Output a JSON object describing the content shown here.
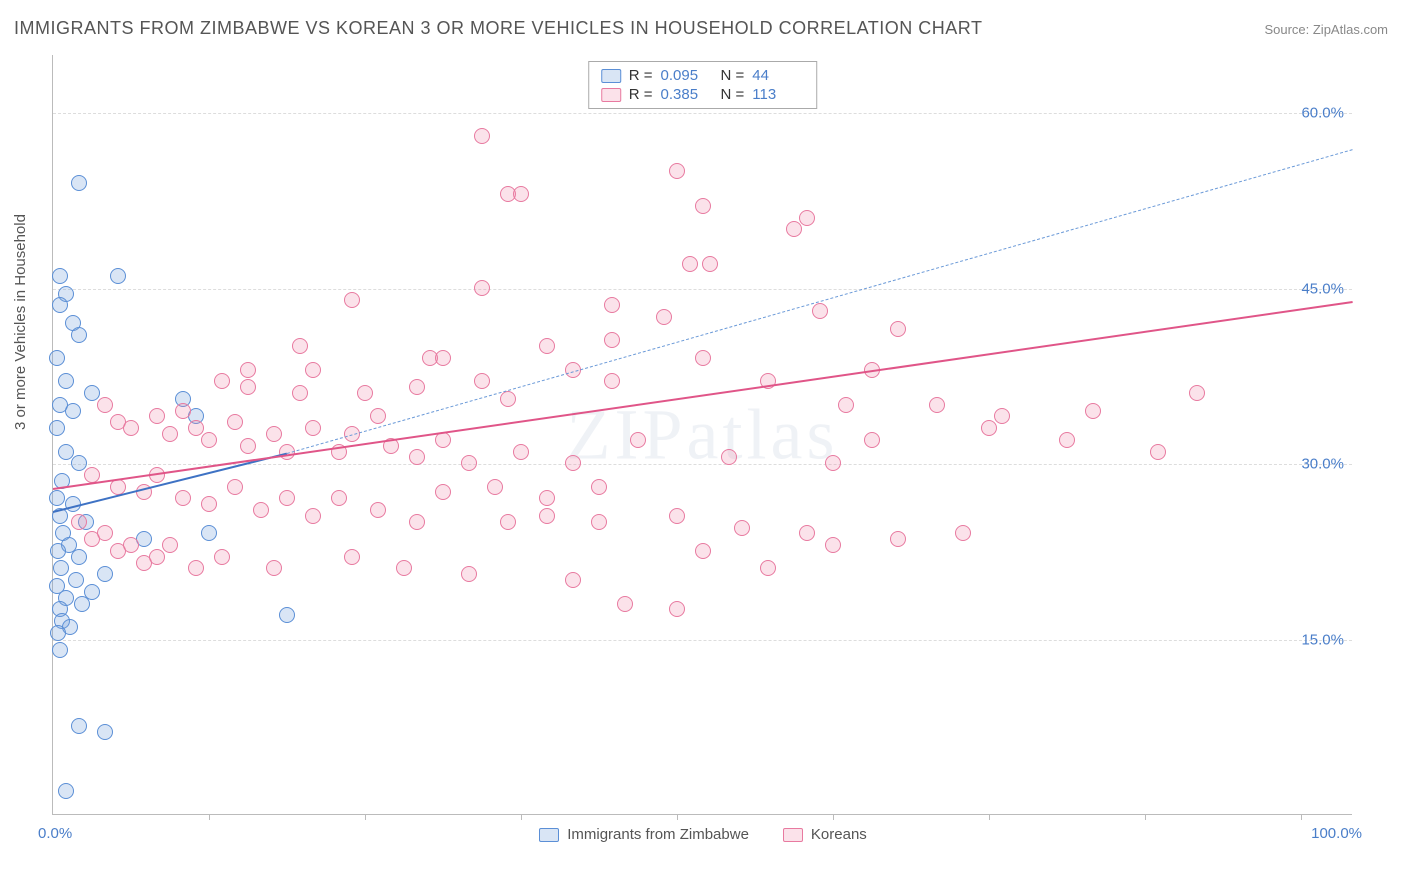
{
  "title": "IMMIGRANTS FROM ZIMBABWE VS KOREAN 3 OR MORE VEHICLES IN HOUSEHOLD CORRELATION CHART",
  "source": "Source: ZipAtlas.com",
  "ylabel": "3 or more Vehicles in Household",
  "watermark": "ZIPatlas",
  "chart": {
    "type": "scatter",
    "xlim": [
      0,
      100
    ],
    "ylim": [
      0,
      65
    ],
    "x_tick_label_left": "0.0%",
    "x_tick_label_right": "100.0%",
    "x_minor_ticks": [
      12,
      24,
      36,
      48,
      60,
      72,
      84,
      96
    ],
    "y_gridlines": [
      15,
      30,
      45,
      60
    ],
    "y_tick_labels": [
      "15.0%",
      "30.0%",
      "45.0%",
      "60.0%"
    ],
    "background_color": "#ffffff",
    "grid_color": "#dddddd",
    "axis_color": "#bbbbbb",
    "tick_label_color": "#4a7ec9",
    "point_radius": 8,
    "series": [
      {
        "name": "Immigrants from Zimbabwe",
        "color_fill": "rgba(120,160,220,0.28)",
        "color_stroke": "#5b8fd6",
        "r": "0.095",
        "n": "44",
        "trend": {
          "x1": 0,
          "y1": 26,
          "x2": 18,
          "y2": 31,
          "dash_to_x": 100,
          "dash_to_y": 57,
          "line_color": "#3e72c4",
          "line_width": 2.5,
          "dash_color": "#6b9ad8"
        },
        "points": [
          [
            2,
            54
          ],
          [
            0.5,
            46
          ],
          [
            5,
            46
          ],
          [
            1,
            44.5
          ],
          [
            0.5,
            43.5
          ],
          [
            1.5,
            42
          ],
          [
            2,
            41
          ],
          [
            0.3,
            39
          ],
          [
            1,
            37
          ],
          [
            3,
            36
          ],
          [
            0.5,
            35
          ],
          [
            1.5,
            34.5
          ],
          [
            10,
            35.5
          ],
          [
            11,
            34
          ],
          [
            0.3,
            33
          ],
          [
            1,
            31
          ],
          [
            2,
            30
          ],
          [
            0.7,
            28.5
          ],
          [
            0.3,
            27
          ],
          [
            1.5,
            26.5
          ],
          [
            0.5,
            25.5
          ],
          [
            2.5,
            25
          ],
          [
            12,
            24
          ],
          [
            0.8,
            24
          ],
          [
            1.2,
            23
          ],
          [
            0.4,
            22.5
          ],
          [
            2,
            22
          ],
          [
            7,
            23.5
          ],
          [
            0.6,
            21
          ],
          [
            1.8,
            20
          ],
          [
            0.3,
            19.5
          ],
          [
            1,
            18.5
          ],
          [
            2.2,
            18
          ],
          [
            0.5,
            17.5
          ],
          [
            18,
            17
          ],
          [
            0.7,
            16.5
          ],
          [
            1.3,
            16
          ],
          [
            0.4,
            15.5
          ],
          [
            2,
            7.5
          ],
          [
            4,
            7
          ],
          [
            1,
            2
          ],
          [
            0.5,
            14
          ],
          [
            3,
            19
          ],
          [
            4,
            20.5
          ]
        ]
      },
      {
        "name": "Koreans",
        "color_fill": "rgba(240,140,170,0.25)",
        "color_stroke": "#e87aa0",
        "r": "0.385",
        "n": "113",
        "trend": {
          "x1": 0,
          "y1": 28,
          "x2": 100,
          "y2": 44,
          "line_color": "#e05588",
          "line_width": 2.5
        },
        "points": [
          [
            33,
            58
          ],
          [
            35,
            53
          ],
          [
            36,
            53
          ],
          [
            48,
            55
          ],
          [
            50,
            52
          ],
          [
            58,
            51
          ],
          [
            49,
            47
          ],
          [
            50.5,
            47
          ],
          [
            23,
            44
          ],
          [
            33,
            45
          ],
          [
            43,
            43.5
          ],
          [
            47,
            42.5
          ],
          [
            43,
            40.5
          ],
          [
            57,
            50
          ],
          [
            59,
            43
          ],
          [
            65,
            41.5
          ],
          [
            19,
            40
          ],
          [
            20,
            38
          ],
          [
            29,
            39
          ],
          [
            38,
            40
          ],
          [
            40,
            38
          ],
          [
            13,
            37
          ],
          [
            15,
            36.5
          ],
          [
            24,
            36
          ],
          [
            28,
            36.5
          ],
          [
            33,
            37
          ],
          [
            35,
            35.5
          ],
          [
            43,
            37
          ],
          [
            55,
            37
          ],
          [
            61,
            35
          ],
          [
            63,
            38
          ],
          [
            88,
            36
          ],
          [
            4,
            35
          ],
          [
            5,
            33.5
          ],
          [
            6,
            33
          ],
          [
            8,
            34
          ],
          [
            9,
            32.5
          ],
          [
            10,
            34.5
          ],
          [
            11,
            33
          ],
          [
            12,
            32
          ],
          [
            14,
            33.5
          ],
          [
            15,
            31.5
          ],
          [
            17,
            32.5
          ],
          [
            18,
            31
          ],
          [
            20,
            33
          ],
          [
            22,
            31
          ],
          [
            23,
            32.5
          ],
          [
            26,
            31.5
          ],
          [
            28,
            30.5
          ],
          [
            30,
            32
          ],
          [
            32,
            30
          ],
          [
            36,
            31
          ],
          [
            40,
            30
          ],
          [
            45,
            32
          ],
          [
            52,
            30.5
          ],
          [
            60,
            30
          ],
          [
            72,
            33
          ],
          [
            73,
            34
          ],
          [
            80,
            34.5
          ],
          [
            85,
            31
          ],
          [
            3,
            29
          ],
          [
            5,
            28
          ],
          [
            7,
            27.5
          ],
          [
            8,
            29
          ],
          [
            10,
            27
          ],
          [
            12,
            26.5
          ],
          [
            14,
            28
          ],
          [
            16,
            26
          ],
          [
            18,
            27
          ],
          [
            20,
            25.5
          ],
          [
            22,
            27
          ],
          [
            25,
            26
          ],
          [
            28,
            25
          ],
          [
            30,
            27.5
          ],
          [
            35,
            25
          ],
          [
            38,
            25.5
          ],
          [
            42,
            25
          ],
          [
            48,
            25.5
          ],
          [
            53,
            24.5
          ],
          [
            58,
            24
          ],
          [
            63,
            32
          ],
          [
            70,
            24
          ],
          [
            2,
            25
          ],
          [
            3,
            23.5
          ],
          [
            4,
            24
          ],
          [
            5,
            22.5
          ],
          [
            6,
            23
          ],
          [
            7,
            21.5
          ],
          [
            8,
            22
          ],
          [
            9,
            23
          ],
          [
            11,
            21
          ],
          [
            13,
            22
          ],
          [
            17,
            21
          ],
          [
            23,
            22
          ],
          [
            27,
            21
          ],
          [
            32,
            20.5
          ],
          [
            40,
            20
          ],
          [
            50,
            22.5
          ],
          [
            55,
            21
          ],
          [
            60,
            23
          ],
          [
            65,
            23.5
          ],
          [
            44,
            18
          ],
          [
            48,
            17.5
          ],
          [
            38,
            27
          ],
          [
            42,
            28
          ],
          [
            34,
            28
          ],
          [
            25,
            34
          ],
          [
            15,
            38
          ],
          [
            19,
            36
          ],
          [
            30,
            39
          ],
          [
            50,
            39
          ],
          [
            68,
            35
          ],
          [
            78,
            32
          ]
        ]
      }
    ]
  },
  "legend_bottom": [
    {
      "label": "Immigrants from Zimbabwe",
      "series_idx": 0
    },
    {
      "label": "Koreans",
      "series_idx": 1
    }
  ]
}
